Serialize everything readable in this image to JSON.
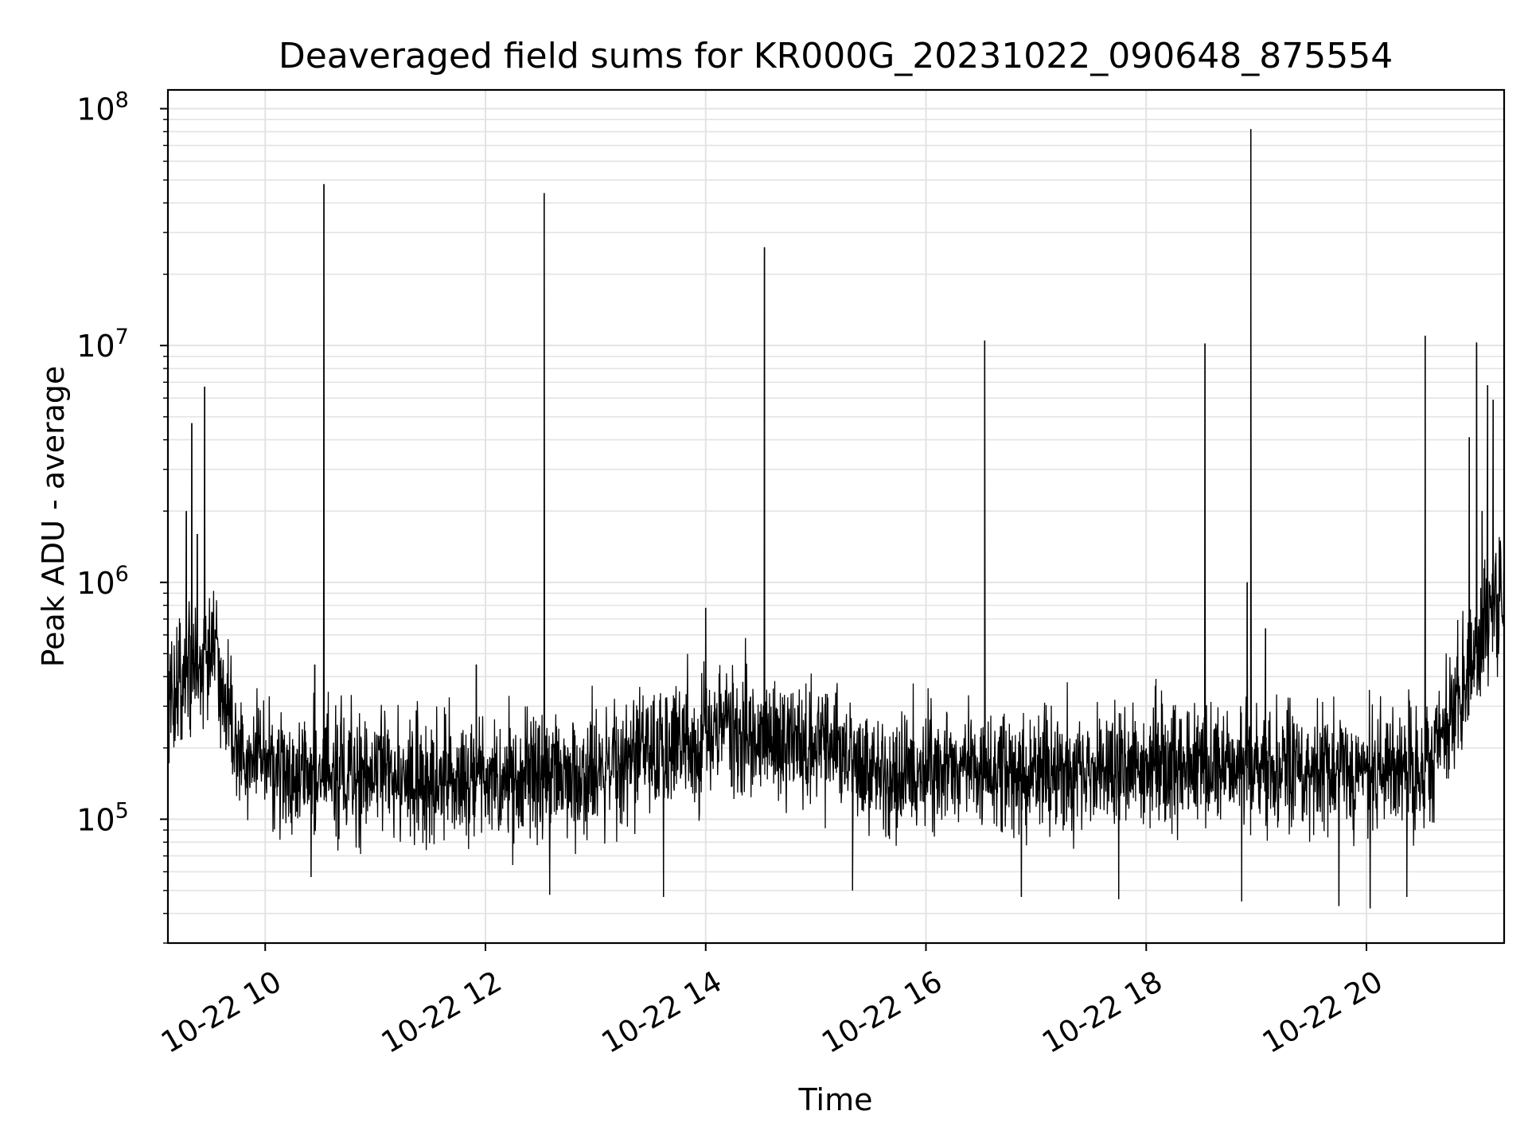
{
  "chart_data": {
    "type": "line",
    "title": "Deaveraged field sums for KR000G_20231022_090648_875554",
    "xlabel": "Time",
    "ylabel": "Peak ADU - average",
    "x_scale": "time",
    "y_scale": "log",
    "xlim": [
      "2023-10-22 09:07",
      "2023-10-22 21:15"
    ],
    "ylim": [
      30000,
      120000000
    ],
    "grid": true,
    "legend": "none",
    "x_ticks": [
      "10-22 10",
      "10-22 12",
      "10-22 14",
      "10-22 16",
      "10-22 18",
      "10-22 20"
    ],
    "y_ticks": [
      {
        "base": "10",
        "exp": "5",
        "value": 100000
      },
      {
        "base": "10",
        "exp": "6",
        "value": 1000000
      },
      {
        "base": "10",
        "exp": "7",
        "value": 10000000
      },
      {
        "base": "10",
        "exp": "8",
        "value": 100000000
      }
    ],
    "line_color": "#000000",
    "baseline_profile": [
      {
        "x": "2023-10-22 09:07",
        "y": 300000
      },
      {
        "x": "2023-10-22 09:20",
        "y": 450000
      },
      {
        "x": "2023-10-22 09:30",
        "y": 550000
      },
      {
        "x": "2023-10-22 09:40",
        "y": 300000
      },
      {
        "x": "2023-10-22 09:50",
        "y": 170000
      },
      {
        "x": "2023-10-22 10:30",
        "y": 150000
      },
      {
        "x": "2023-10-22 12:00",
        "y": 145000
      },
      {
        "x": "2023-10-22 13:00",
        "y": 155000
      },
      {
        "x": "2023-10-22 13:30",
        "y": 190000
      },
      {
        "x": "2023-10-22 14:00",
        "y": 230000
      },
      {
        "x": "2023-10-22 15:00",
        "y": 220000
      },
      {
        "x": "2023-10-22 15:30",
        "y": 160000
      },
      {
        "x": "2023-10-22 17:00",
        "y": 155000
      },
      {
        "x": "2023-10-22 19:00",
        "y": 165000
      },
      {
        "x": "2023-10-22 20:30",
        "y": 160000
      },
      {
        "x": "2023-10-22 20:45",
        "y": 250000
      },
      {
        "x": "2023-10-22 21:00",
        "y": 500000
      },
      {
        "x": "2023-10-22 21:10",
        "y": 850000
      },
      {
        "x": "2023-10-22 21:15",
        "y": 750000
      }
    ],
    "spikes": [
      {
        "x": "2023-10-22 09:17",
        "y": 2000000
      },
      {
        "x": "2023-10-22 09:20",
        "y": 4700000
      },
      {
        "x": "2023-10-22 09:23",
        "y": 1600000
      },
      {
        "x": "2023-10-22 09:27",
        "y": 6700000
      },
      {
        "x": "2023-10-22 10:27",
        "y": 450000
      },
      {
        "x": "2023-10-22 10:32",
        "y": 48000000
      },
      {
        "x": "2023-10-22 11:55",
        "y": 450000
      },
      {
        "x": "2023-10-22 12:32",
        "y": 44000000
      },
      {
        "x": "2023-10-22 14:00",
        "y": 780000
      },
      {
        "x": "2023-10-22 14:32",
        "y": 26000000
      },
      {
        "x": "2023-10-22 16:32",
        "y": 10500000
      },
      {
        "x": "2023-10-22 18:32",
        "y": 10200000
      },
      {
        "x": "2023-10-22 18:55",
        "y": 1000000
      },
      {
        "x": "2023-10-22 18:57",
        "y": 82000000
      },
      {
        "x": "2023-10-22 19:05",
        "y": 640000
      },
      {
        "x": "2023-10-22 20:32",
        "y": 11000000
      },
      {
        "x": "2023-10-22 20:56",
        "y": 4100000
      },
      {
        "x": "2023-10-22 21:00",
        "y": 10300000
      },
      {
        "x": "2023-10-22 21:03",
        "y": 2000000
      },
      {
        "x": "2023-10-22 21:06",
        "y": 6800000
      },
      {
        "x": "2023-10-22 21:09",
        "y": 5900000
      }
    ],
    "dips": [
      {
        "x": "2023-10-22 10:25",
        "y": 57000
      },
      {
        "x": "2023-10-22 12:35",
        "y": 48000
      },
      {
        "x": "2023-10-22 13:37",
        "y": 47000
      },
      {
        "x": "2023-10-22 15:20",
        "y": 50000
      },
      {
        "x": "2023-10-22 16:52",
        "y": 47000
      },
      {
        "x": "2023-10-22 17:45",
        "y": 46000
      },
      {
        "x": "2023-10-22 18:52",
        "y": 45000
      },
      {
        "x": "2023-10-22 19:45",
        "y": 43000
      },
      {
        "x": "2023-10-22 20:02",
        "y": 42000
      },
      {
        "x": "2023-10-22 20:22",
        "y": 47000
      }
    ]
  }
}
